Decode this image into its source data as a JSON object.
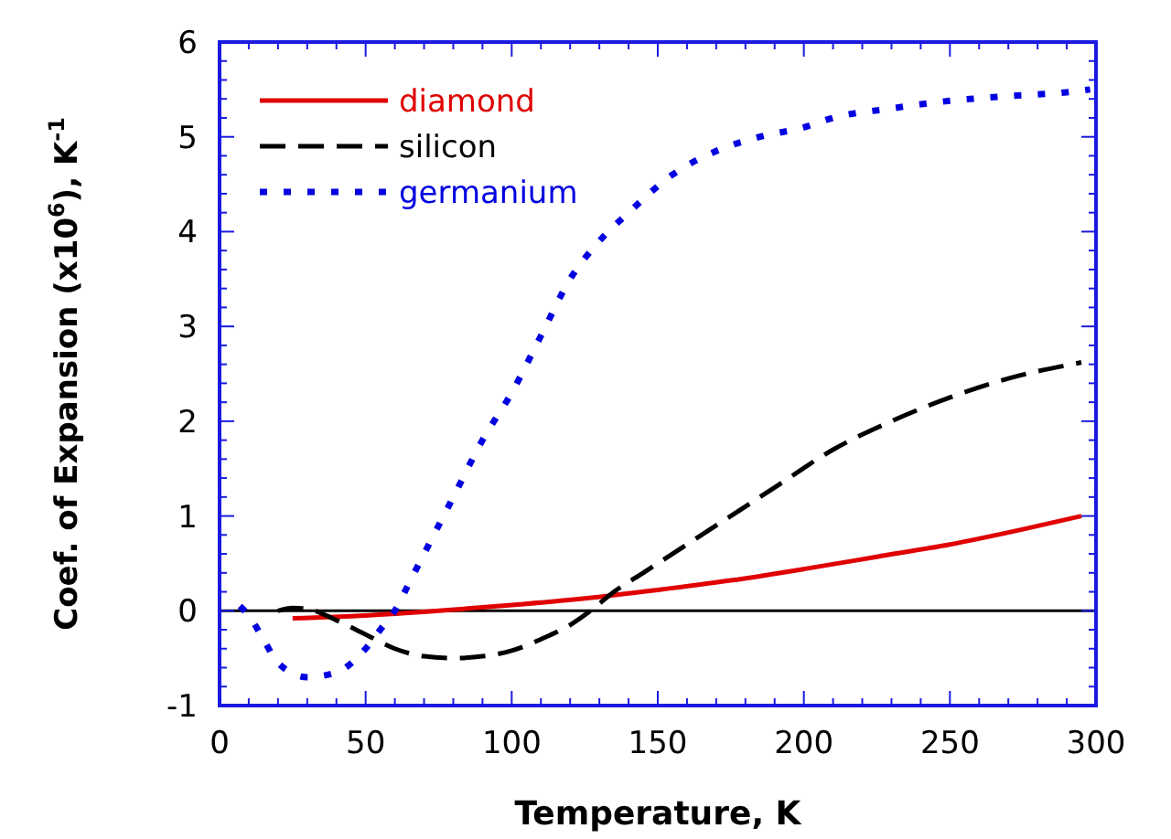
{
  "chart_data": {
    "type": "line",
    "xlabel": "Temperature, K",
    "ylabel": "Coef. of Expansion (x10$^{6}$), K$^{-1}$",
    "xlim": [
      0,
      300
    ],
    "xticks": [
      0,
      50,
      100,
      150,
      200,
      250,
      300
    ],
    "ylim": [
      -1,
      6
    ],
    "yticks": [
      -1,
      0,
      1,
      2,
      3,
      4,
      5,
      6
    ],
    "grid": false,
    "legend": "top left",
    "ref_lines": [
      {
        "axis": "y",
        "value": 0,
        "color": "#000000"
      }
    ],
    "series": [
      {
        "name": "diamond",
        "color": "#e00000",
        "line_style": "solid",
        "x": [
          25,
          50,
          75,
          100,
          125,
          150,
          175,
          200,
          225,
          250,
          275,
          295
        ],
        "values": [
          -0.08,
          -0.05,
          0,
          0.06,
          0.13,
          0.22,
          0.32,
          0.44,
          0.57,
          0.7,
          0.86,
          1.0
        ]
      },
      {
        "name": "silicon",
        "color": "#000000",
        "line_style": "dashed",
        "x": [
          20,
          25,
          30,
          40,
          50,
          60,
          70,
          80,
          90,
          100,
          110,
          120,
          127,
          135,
          145,
          160,
          175,
          190,
          210,
          230,
          250,
          270,
          295
        ],
        "values": [
          0,
          0.03,
          0.02,
          -0.1,
          -0.25,
          -0.4,
          -0.48,
          -0.5,
          -0.48,
          -0.42,
          -0.3,
          -0.15,
          0,
          0.2,
          0.4,
          0.7,
          1.0,
          1.3,
          1.7,
          2.0,
          2.25,
          2.45,
          2.62
        ]
      },
      {
        "name": "germanium",
        "color": "#0000e0",
        "line_style": "dotted",
        "x": [
          7,
          10,
          15,
          20,
          30,
          40,
          50,
          55,
          60,
          65,
          70,
          80,
          90,
          100,
          110,
          120,
          130,
          140,
          155,
          170,
          185,
          200,
          210,
          230,
          250,
          270,
          290,
          298
        ],
        "values": [
          0.05,
          -0.05,
          -0.3,
          -0.55,
          -0.7,
          -0.65,
          -0.4,
          -0.2,
          0,
          0.3,
          0.6,
          1.2,
          1.8,
          2.3,
          2.9,
          3.5,
          3.9,
          4.2,
          4.6,
          4.85,
          5.0,
          5.1,
          5.2,
          5.3,
          5.38,
          5.43,
          5.47,
          5.5
        ]
      }
    ]
  }
}
